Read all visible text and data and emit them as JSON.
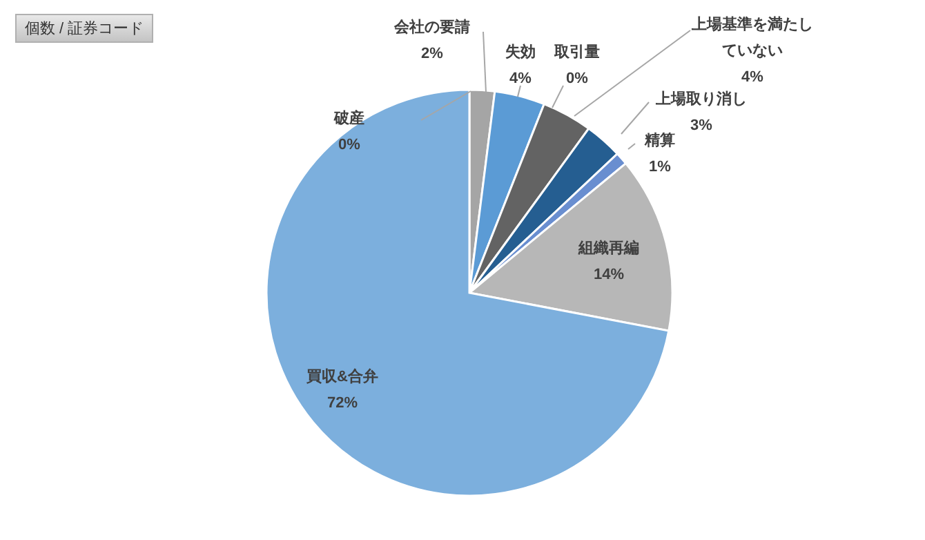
{
  "chart_data": {
    "type": "pie",
    "categories": [
      "破産",
      "会社の要請",
      "失効",
      "取引量",
      "上場基準を満たしていない",
      "上場取り消し",
      "精算",
      "組織再編",
      "買収&合弁"
    ],
    "values": [
      0,
      2,
      4,
      0,
      4,
      3,
      1,
      14,
      72
    ],
    "value_labels": [
      "0%",
      "2%",
      "4%",
      "0%",
      "4%",
      "3%",
      "1%",
      "14%",
      "72%"
    ],
    "colors": [
      "#4472c4",
      "#a5a5a5",
      "#5b9bd5",
      "#264478",
      "#636363",
      "#255e91",
      "#698ed0",
      "#b7b7b7",
      "#7cafdd"
    ],
    "annotations": [
      "個数 / 証券コード"
    ]
  }
}
